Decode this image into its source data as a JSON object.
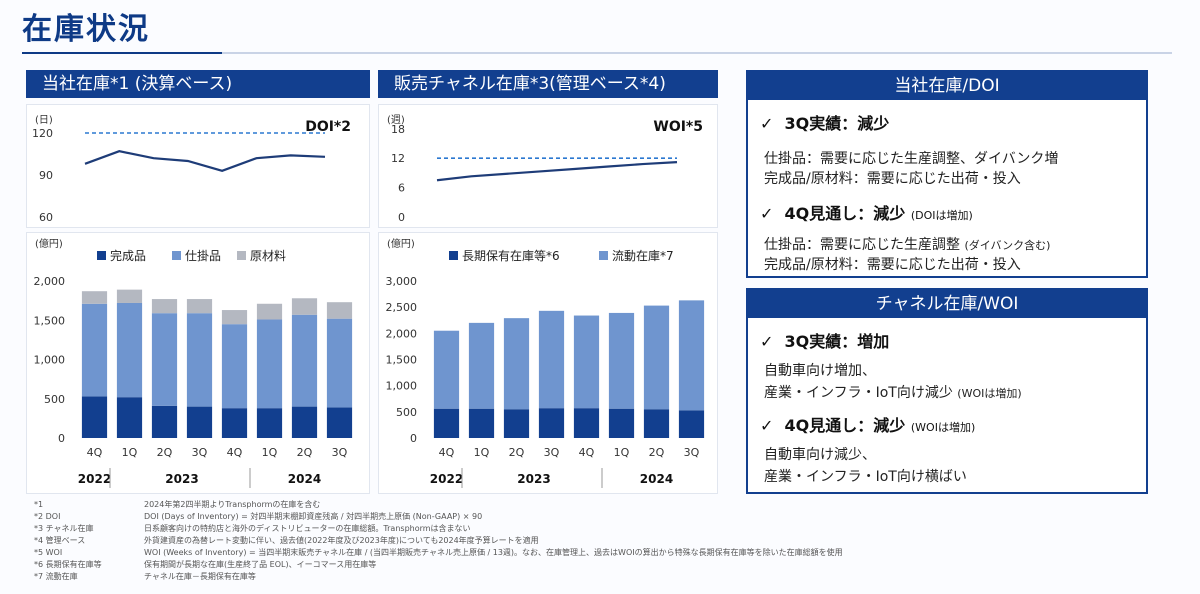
{
  "title": "在庫状況",
  "left_header": "当社在庫*1 (決算ベース)",
  "mid_header": "販売チャネル在庫*3(管理ベース*4)",
  "chart_data": [
    {
      "type": "line",
      "title": "DOI*2",
      "ylabel": "(日)",
      "yticks": [
        "60",
        "90",
        "120"
      ],
      "ylim": [
        60,
        130
      ],
      "categories": [
        "4Q",
        "1Q",
        "2Q",
        "3Q",
        "4Q",
        "1Q",
        "2Q",
        "3Q"
      ],
      "series": [
        {
          "name": "DOI",
          "values": [
            98,
            107,
            102,
            100,
            93,
            102,
            104,
            103
          ]
        },
        {
          "name": "target",
          "style": "dashed",
          "values": [
            120,
            120,
            120,
            120,
            120,
            120,
            120,
            120
          ]
        }
      ]
    },
    {
      "type": "bar",
      "stacked": true,
      "ylabel": "(億円)",
      "yticks": [
        "0",
        "500",
        "1,000",
        "1,500",
        "2,000"
      ],
      "ylim": [
        0,
        2000
      ],
      "categories": [
        "4Q",
        "1Q",
        "2Q",
        "3Q",
        "4Q",
        "1Q",
        "2Q",
        "3Q"
      ],
      "years": [
        "2022",
        "2023",
        "2024"
      ],
      "legend": [
        "完成品",
        "仕掛品",
        "原材料"
      ],
      "series": [
        {
          "name": "完成品",
          "values": [
            530,
            520,
            410,
            400,
            380,
            380,
            400,
            390
          ]
        },
        {
          "name": "仕掛品",
          "values": [
            1180,
            1200,
            1180,
            1190,
            1070,
            1130,
            1170,
            1130
          ]
        },
        {
          "name": "原材料",
          "values": [
            160,
            170,
            180,
            180,
            180,
            200,
            210,
            210
          ]
        }
      ]
    },
    {
      "type": "line",
      "title": "WOI*5",
      "ylabel": "(週)",
      "yticks": [
        "0",
        "6",
        "12",
        "18"
      ],
      "ylim": [
        0,
        20
      ],
      "categories": [
        "4Q",
        "1Q",
        "2Q",
        "3Q",
        "4Q",
        "1Q",
        "2Q",
        "3Q"
      ],
      "series": [
        {
          "name": "WOI",
          "values": [
            7.5,
            8.3,
            8.8,
            9.3,
            9.8,
            10.3,
            10.8,
            11.2
          ]
        },
        {
          "name": "target",
          "style": "dashed",
          "values": [
            12,
            12,
            12,
            12,
            12,
            12,
            12,
            12
          ]
        }
      ]
    },
    {
      "type": "bar",
      "stacked": true,
      "ylabel": "(億円)",
      "yticks": [
        "0",
        "500",
        "1,000",
        "1,500",
        "2,000",
        "2,500",
        "3,000"
      ],
      "ylim": [
        0,
        3000
      ],
      "categories": [
        "4Q",
        "1Q",
        "2Q",
        "3Q",
        "4Q",
        "1Q",
        "2Q",
        "3Q"
      ],
      "years": [
        "2022",
        "2023",
        "2024"
      ],
      "legend": [
        "長期保有在庫等*6",
        "流動在庫*7"
      ],
      "series": [
        {
          "name": "長期保有在庫等*6",
          "values": [
            560,
            560,
            550,
            570,
            570,
            560,
            550,
            530
          ]
        },
        {
          "name": "流動在庫*7",
          "values": [
            1490,
            1640,
            1740,
            1860,
            1770,
            1830,
            1980,
            2100
          ]
        }
      ]
    }
  ],
  "right": {
    "box1": {
      "header": "当社在庫/DOI",
      "q3_title": "3Q実績：減少",
      "q3_lines": [
        "仕掛品：需要に応じた生産調整、ダイバンク増",
        "完成品/原材料：需要に応じた出荷・投入"
      ],
      "q4_title": "4Q見通し：減少",
      "q4_note": "(DOIは増加)",
      "q4_lines": [
        "仕掛品：需要に応じた生産調整",
        "完成品/原材料：需要に応じた出荷・投入"
      ],
      "q4_line1_note": "(ダイバンク含む)"
    },
    "box2": {
      "header": "チャネル在庫/WOI",
      "q3_title": "3Q実績：増加",
      "q3_lines": [
        "自動車向け増加、",
        "産業・インフラ・IoT向け減少"
      ],
      "q3_line2_note": "(WOIは増加)",
      "q4_title": "4Q見通し：減少",
      "q4_note": "(WOIは増加)",
      "q4_lines": [
        "自動車向け減少、",
        "産業・インフラ・IoT向け横ばい"
      ]
    },
    "check": "✓"
  },
  "footnotes": [
    {
      "k": "*1",
      "v": "2024年第2四半期よりTransphormの在庫を含む"
    },
    {
      "k": "*2 DOI",
      "v": "DOI (Days of Inventory) = 対四半期末棚卸資産残高 / 対四半期売上原価 (Non-GAAP) × 90"
    },
    {
      "k": "*3 チャネル在庫",
      "v": "日系顧客向けの特約店と海外のディストリビューターの在庫総額。Transphormは含まない"
    },
    {
      "k": "*4 管理ベース",
      "v": "外貨建資産の為替レート変動に伴い、過去値(2022年度及び2023年度)についても2024年度予算レートを適用"
    },
    {
      "k": "*5 WOI",
      "v": "WOI (Weeks of Inventory) = 当四半期末販売チャネル在庫 / (当四半期販売チャネル売上原価 / 13週)。なお、在庫管理上、過去はWOIの算出から特殊な長期保有在庫等を除いた在庫総額を使用"
    },
    {
      "k": "*6 長期保有在庫等",
      "v": "保有期間が長期な在庫(生産終了品 EOL)、イーコマース用在庫等"
    },
    {
      "k": "*7 流動在庫",
      "v": "チャネル在庫－長期保有在庫等"
    }
  ]
}
